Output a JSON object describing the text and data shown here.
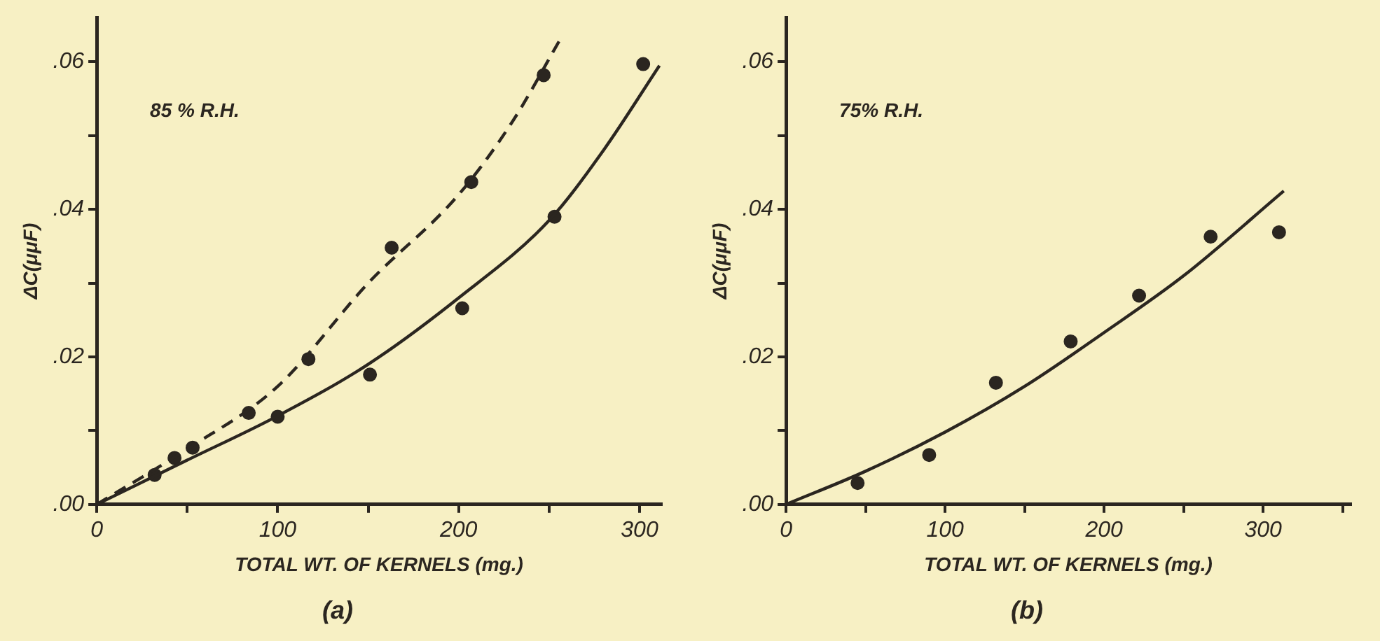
{
  "chart_data": [
    {
      "type": "scatter",
      "title": "(a)",
      "xlabel": "TOTAL WT. OF KERNELS (mg.)",
      "ylabel": "ΔC(μμF)",
      "annotations": [
        "85 % R.H."
      ],
      "xlim": [
        0,
        312
      ],
      "ylim": [
        0,
        0.066
      ],
      "xticks": [
        0,
        {
          "value": 50,
          "label": null
        },
        100,
        {
          "value": 150,
          "label": null
        },
        200,
        {
          "value": 250,
          "label": null
        },
        300
      ],
      "yticks": [
        {
          "value": 0,
          "label": ".00"
        },
        {
          "value": 0.01,
          "label": null
        },
        {
          "value": 0.02,
          "label": ".02"
        },
        {
          "value": 0.03,
          "label": null
        },
        {
          "value": 0.04,
          "label": ".04"
        },
        {
          "value": 0.05,
          "label": null
        },
        {
          "value": 0.06,
          "label": ".06"
        }
      ],
      "grid": false,
      "series": [
        {
          "type": "line",
          "color": "#2b2620",
          "marker": "none",
          "line_style": "dashed",
          "x": [
            0,
            50,
            100,
            150,
            200,
            230,
            256
          ],
          "values": [
            0,
            0.0075,
            0.016,
            0.03,
            0.042,
            0.052,
            0.063
          ]
        },
        {
          "type": "line",
          "color": "#2b2620",
          "marker": "none",
          "line_style": "solid",
          "x": [
            0,
            50,
            100,
            150,
            200,
            250,
            280,
            311
          ],
          "values": [
            0,
            0.006,
            0.012,
            0.019,
            0.028,
            0.0385,
            0.048,
            0.0595
          ]
        },
        {
          "type": "scatter",
          "color": "#2b2620",
          "marker": "circle",
          "x": [
            32,
            43,
            84,
            117,
            163,
            207,
            247
          ],
          "values": [
            0.004,
            0.0063,
            0.0124,
            0.0197,
            0.0348,
            0.0437,
            0.0582
          ]
        },
        {
          "type": "scatter",
          "color": "#2b2620",
          "marker": "circle",
          "x": [
            53,
            100,
            151,
            202,
            253,
            302
          ],
          "values": [
            0.0077,
            0.0119,
            0.0176,
            0.0266,
            0.039,
            0.0597
          ]
        }
      ]
    },
    {
      "type": "scatter",
      "title": "(b)",
      "xlabel": "TOTAL WT. OF KERNELS (mg.)",
      "ylabel": "ΔC(μμF)",
      "annotations": [
        "75% R.H."
      ],
      "xlim": [
        0,
        355
      ],
      "ylim": [
        0,
        0.066
      ],
      "xticks": [
        0,
        {
          "value": 50,
          "label": null
        },
        100,
        {
          "value": 150,
          "label": null
        },
        200,
        {
          "value": 250,
          "label": null
        },
        300,
        {
          "value": 350,
          "label": null
        }
      ],
      "yticks": [
        {
          "value": 0,
          "label": ".00"
        },
        {
          "value": 0.01,
          "label": null
        },
        {
          "value": 0.02,
          "label": ".02"
        },
        {
          "value": 0.03,
          "label": null
        },
        {
          "value": 0.04,
          "label": ".04"
        },
        {
          "value": 0.05,
          "label": null
        },
        {
          "value": 0.06,
          "label": ".06"
        }
      ],
      "grid": false,
      "series": [
        {
          "type": "line",
          "color": "#2b2620",
          "marker": "none",
          "line_style": "solid",
          "x": [
            0,
            50,
            100,
            150,
            200,
            250,
            313
          ],
          "values": [
            0,
            0.0045,
            0.0098,
            0.016,
            0.0233,
            0.031,
            0.0425
          ]
        },
        {
          "type": "scatter",
          "color": "#2b2620",
          "marker": "circle",
          "x": [
            45,
            90,
            132,
            179,
            222,
            267,
            310
          ],
          "values": [
            0.0029,
            0.0067,
            0.0165,
            0.0221,
            0.0283,
            0.0363,
            0.0369
          ]
        }
      ]
    }
  ]
}
